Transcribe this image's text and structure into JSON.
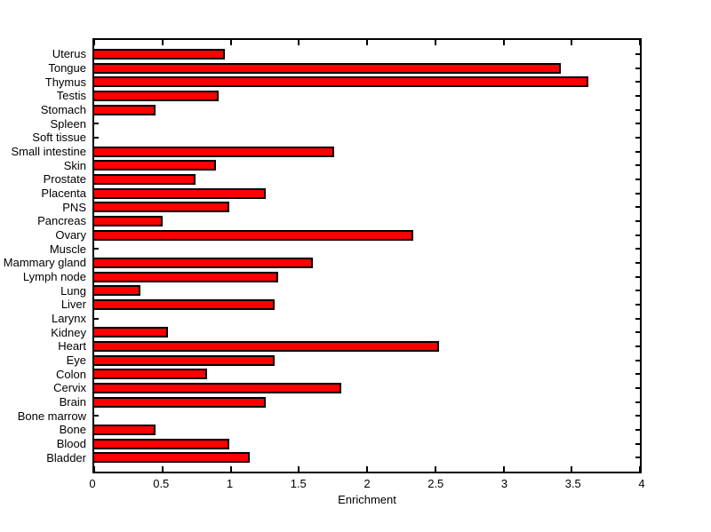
{
  "figure": {
    "background": "#ffffff"
  },
  "chart_data": {
    "type": "bar",
    "orientation": "horizontal",
    "title": "",
    "xlabel": "Enrichment",
    "ylabel": "",
    "xlim": [
      0,
      4
    ],
    "grid": false,
    "legend": "none",
    "bar_color": "#ff0000",
    "bar_border_color": "#000000",
    "axis_color": "#000000",
    "xticks": [
      0,
      0.5,
      1,
      1.5,
      2,
      2.5,
      3,
      3.5,
      4
    ],
    "xtick_labels": [
      "0",
      "0.5",
      "1",
      "1.5",
      "2",
      "2.5",
      "3",
      "3.5",
      "4"
    ],
    "categories": [
      "Uterus",
      "Tongue",
      "Thymus",
      "Testis",
      "Stomach",
      "Spleen",
      "Soft tissue",
      "Small intestine",
      "Skin",
      "Prostate",
      "Placenta",
      "PNS",
      "Pancreas",
      "Ovary",
      "Muscle",
      "Mammary gland",
      "Lymph node",
      "Lung",
      "Liver",
      "Larynx",
      "Kidney",
      "Heart",
      "Eye",
      "Colon",
      "Cervix",
      "Brain",
      "Bone marrow",
      "Bone",
      "Blood",
      "Bladder"
    ],
    "values": [
      0.96,
      3.42,
      3.62,
      0.91,
      0.45,
      0,
      0,
      1.76,
      0.89,
      0.74,
      1.26,
      0.99,
      0.5,
      2.34,
      0,
      1.6,
      1.35,
      0.34,
      1.32,
      0,
      0.54,
      2.53,
      1.32,
      0.83,
      1.81,
      1.26,
      0,
      0.45,
      0.99,
      1.14
    ]
  }
}
